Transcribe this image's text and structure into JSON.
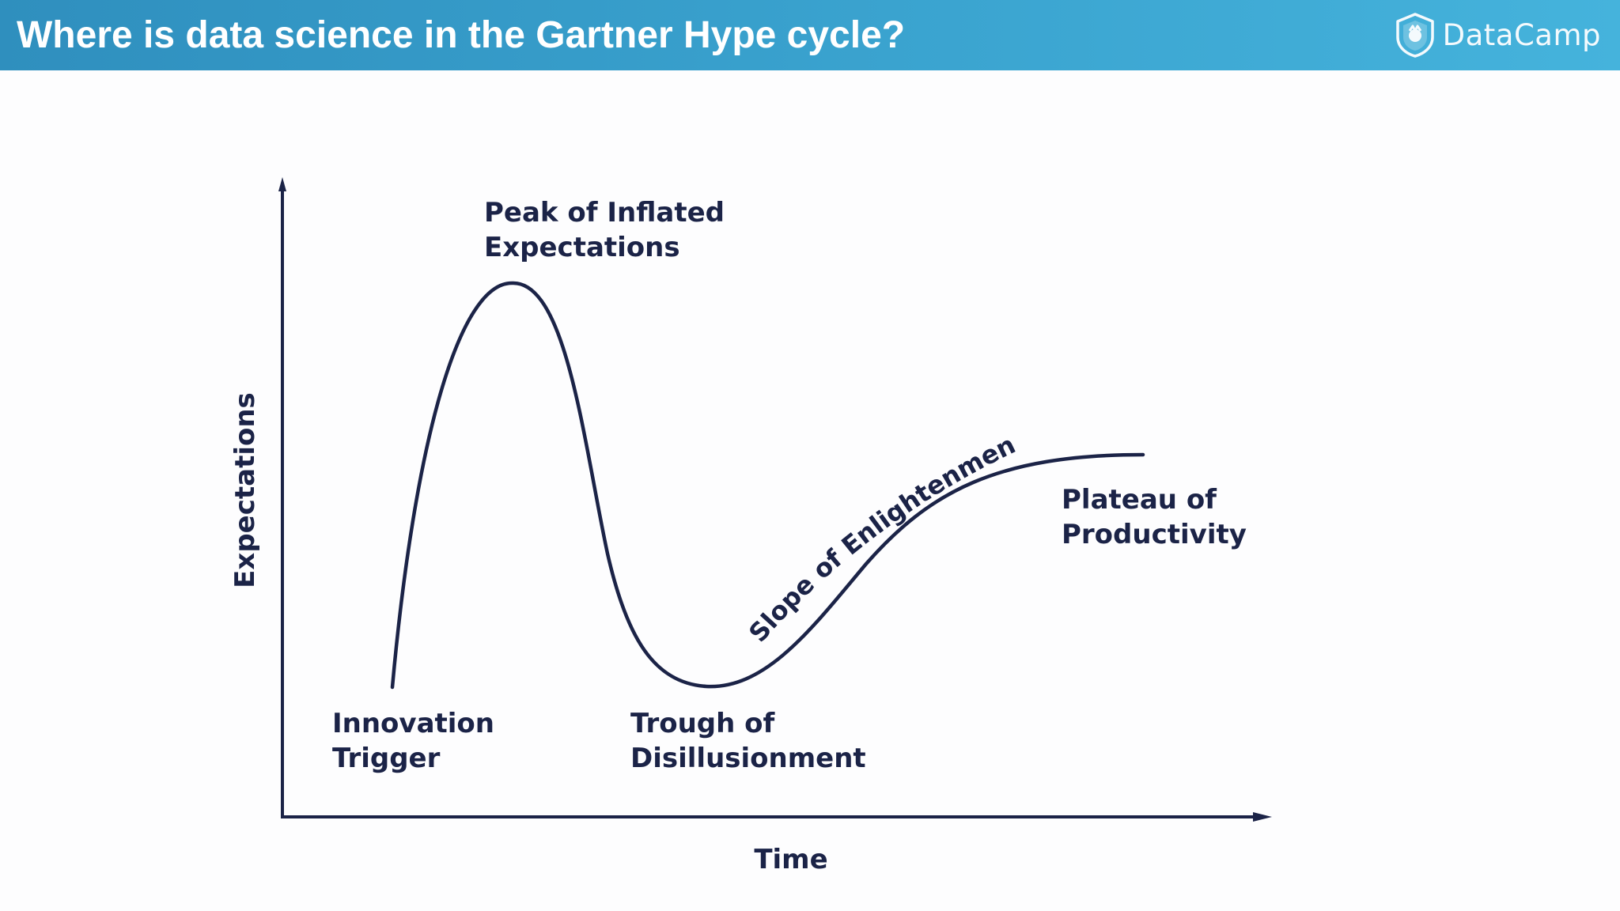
{
  "header": {
    "title": "Where is data science in the Gartner Hype cycle?",
    "brand_name": "DataCamp",
    "brand_icon": "datacamp-shield-icon"
  },
  "diagram": {
    "axis_y_label": "Expectations",
    "axis_x_label": "Time",
    "phases": {
      "innovation_trigger": [
        "Innovation",
        "Trigger"
      ],
      "peak": [
        "Peak of Inflated",
        "Expectations"
      ],
      "trough": [
        "Trough of",
        "Disillusionment"
      ],
      "slope": "Slope of Enlightenment",
      "plateau": [
        "Plateau of",
        "Productivity"
      ]
    }
  },
  "colors": {
    "header_start": "#2f8fbe",
    "header_end": "#45b3dc",
    "ink": "#1b2347",
    "background": "#fdfdfe"
  }
}
